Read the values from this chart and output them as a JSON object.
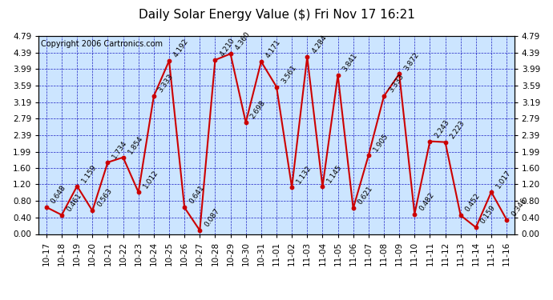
{
  "title": "Daily Solar Energy Value ($) Fri Nov 17 16:21",
  "copyright": "Copyright 2006 Cartronics.com",
  "categories": [
    "10-17",
    "10-18",
    "10-19",
    "10-20",
    "10-21",
    "10-22",
    "10-23",
    "10-24",
    "10-25",
    "10-26",
    "10-27",
    "10-28",
    "10-29",
    "10-30",
    "10-31",
    "11-01",
    "11-02",
    "11-03",
    "11-04",
    "11-05",
    "11-06",
    "11-07",
    "11-08",
    "11-09",
    "11-10",
    "11-11",
    "11-12",
    "11-13",
    "11-14",
    "11-15",
    "11-16"
  ],
  "values": [
    0.648,
    0.461,
    1.159,
    0.563,
    1.734,
    1.854,
    1.012,
    3.333,
    4.192,
    0.641,
    0.087,
    4.21,
    4.36,
    2.698,
    4.171,
    3.561,
    1.132,
    4.284,
    1.145,
    3.841,
    0.621,
    1.905,
    3.333,
    3.872,
    0.482,
    2.243,
    2.223,
    0.452,
    0.159,
    1.017,
    0.346
  ],
  "ylim": [
    0.0,
    4.79
  ],
  "yticks": [
    0.0,
    0.4,
    0.8,
    1.2,
    1.6,
    1.99,
    2.39,
    2.79,
    3.19,
    3.59,
    3.99,
    4.39,
    4.79
  ],
  "line_color": "#cc0000",
  "marker_color": "#cc0000",
  "bg_color": "#ffffff",
  "plot_bg_color": "#cce5ff",
  "grid_color": "#0000bb",
  "title_color": "#000000",
  "copyright_color": "#000000",
  "label_color": "#000000",
  "tick_label_color": "#000000",
  "title_fontsize": 11,
  "copyright_fontsize": 7,
  "label_fontsize": 6.5,
  "tick_fontsize": 7.5,
  "label_rotation": 55
}
